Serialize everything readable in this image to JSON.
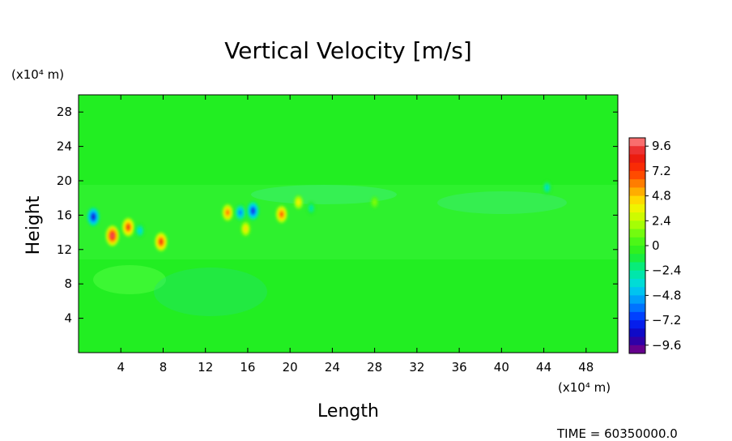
{
  "chart_data": {
    "type": "heatmap",
    "title": "Vertical Velocity [m/s]",
    "xlabel": "Length",
    "ylabel": "Height",
    "x_unit": "(x10⁴ m)",
    "y_unit": "(x10⁴ m)",
    "xlim": [
      0,
      51
    ],
    "ylim": [
      0,
      30
    ],
    "x_ticks": [
      4,
      8,
      12,
      16,
      20,
      24,
      28,
      32,
      36,
      40,
      44,
      48
    ],
    "y_ticks": [
      4,
      8,
      12,
      16,
      20,
      24,
      28
    ],
    "colorbar": {
      "ticks": [
        9.6,
        7.2,
        4.8,
        2.4,
        0,
        -2.4,
        -4.8,
        -7.2,
        -9.6
      ],
      "range": [
        -10.4,
        10.4
      ]
    },
    "background_value": 0,
    "features": [
      {
        "x": 1.4,
        "y": 15.8,
        "value": -8.5
      },
      {
        "x": 3.2,
        "y": 13.6,
        "value": 9.6
      },
      {
        "x": 4.7,
        "y": 14.6,
        "value": 8.0
      },
      {
        "x": 5.8,
        "y": 14.2,
        "value": -4.0
      },
      {
        "x": 7.8,
        "y": 12.9,
        "value": 8.2
      },
      {
        "x": 14.1,
        "y": 16.3,
        "value": 6.5
      },
      {
        "x": 15.3,
        "y": 16.3,
        "value": -6.0
      },
      {
        "x": 16.5,
        "y": 16.5,
        "value": -8.0
      },
      {
        "x": 15.8,
        "y": 14.4,
        "value": 4.5
      },
      {
        "x": 19.2,
        "y": 16.1,
        "value": 7.0
      },
      {
        "x": 20.8,
        "y": 17.5,
        "value": 4.0
      },
      {
        "x": 22.0,
        "y": 16.8,
        "value": -3.0
      },
      {
        "x": 28.0,
        "y": 17.5,
        "value": 1.6
      },
      {
        "x": 44.3,
        "y": 19.2,
        "value": -3.5
      }
    ],
    "time_label": "TIME",
    "time_value": "60350000.0"
  }
}
